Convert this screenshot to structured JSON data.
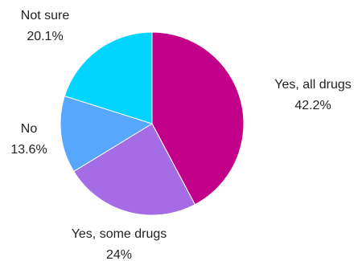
{
  "chart_data": {
    "type": "pie",
    "title": "",
    "slices": [
      {
        "label": "Yes, all drugs",
        "value_text": "42.2%",
        "value": 42.2,
        "color": "#c2008a"
      },
      {
        "label": "Yes, some drugs",
        "value_text": "24%",
        "value": 24.0,
        "color": "#a56ce6"
      },
      {
        "label": "No",
        "value_text": "13.6%",
        "value": 13.6,
        "color": "#57a7ff"
      },
      {
        "label": "Not sure",
        "value_text": "20.1%",
        "value": 20.1,
        "color": "#00d4ff"
      }
    ],
    "start": "12 o'clock",
    "direction": "clockwise",
    "legend": "none"
  }
}
